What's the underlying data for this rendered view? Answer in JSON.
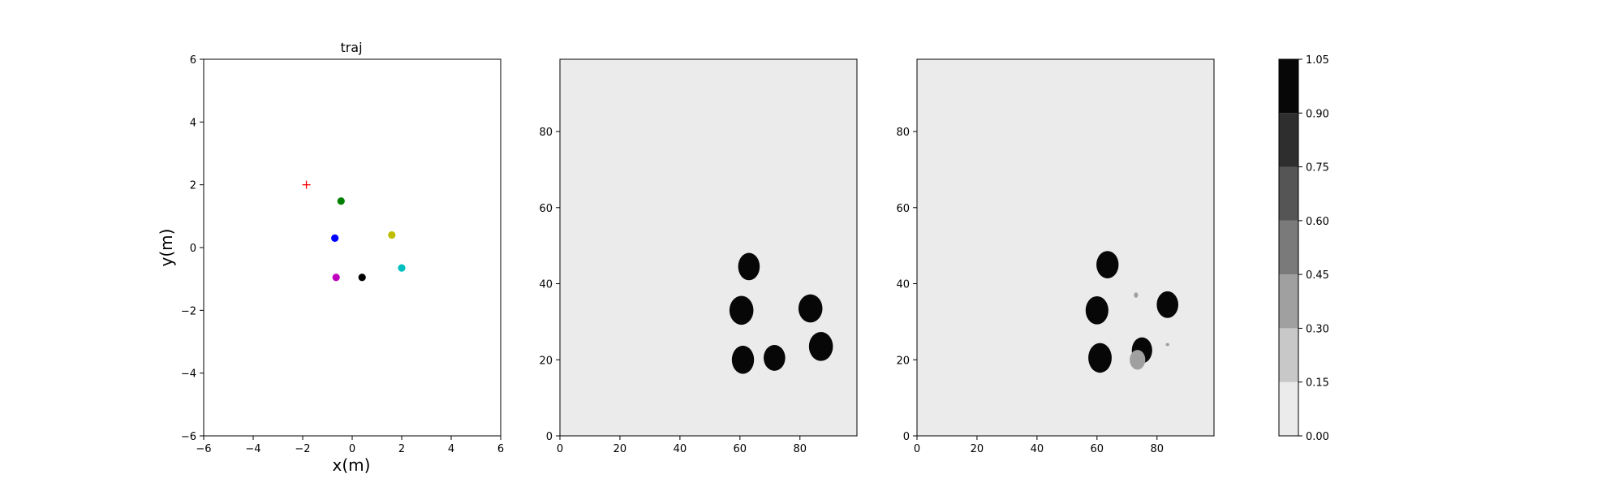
{
  "chart_data": [
    {
      "type": "scatter",
      "title": "traj",
      "xlabel": "x(m)",
      "ylabel": "y(m)",
      "xlim": [
        -6,
        6
      ],
      "ylim": [
        -6,
        6
      ],
      "xticks": [
        -6,
        -4,
        -2,
        0,
        2,
        4,
        6
      ],
      "yticks": [
        -6,
        -4,
        -2,
        0,
        2,
        4,
        6
      ],
      "grid": false,
      "series": [
        {
          "marker": "plus",
          "color": "#ff0000",
          "points": [
            {
              "x": -1.85,
              "y": 2.0
            }
          ]
        },
        {
          "marker": "circle",
          "color": "#008000",
          "points": [
            {
              "x": -0.45,
              "y": 1.48
            }
          ]
        },
        {
          "marker": "circle",
          "color": "#0000ff",
          "points": [
            {
              "x": -0.7,
              "y": 0.3
            }
          ]
        },
        {
          "marker": "circle",
          "color": "#bfbf00",
          "points": [
            {
              "x": 1.6,
              "y": 0.4
            }
          ]
        },
        {
          "marker": "circle",
          "color": "#00bfbf",
          "points": [
            {
              "x": 2.0,
              "y": -0.65
            }
          ]
        },
        {
          "marker": "circle",
          "color": "#bf00bf",
          "points": [
            {
              "x": -0.65,
              "y": -0.95
            }
          ]
        },
        {
          "marker": "circle",
          "color": "#000000",
          "points": [
            {
              "x": 0.4,
              "y": -0.95
            }
          ]
        }
      ]
    },
    {
      "type": "heatmap",
      "title": "",
      "xlim": [
        0,
        99
      ],
      "ylim": [
        0,
        99
      ],
      "xticks": [
        0,
        20,
        40,
        60,
        80
      ],
      "yticks": [
        0,
        20,
        40,
        60,
        80
      ],
      "background_value": 0.0,
      "blobs": [
        {
          "x": 63,
          "y": 44.5,
          "rx": 3.6,
          "ry": 3.6,
          "value": 1.0
        },
        {
          "x": 60.5,
          "y": 33,
          "rx": 4.0,
          "ry": 3.8,
          "value": 1.0
        },
        {
          "x": 83.5,
          "y": 33.5,
          "rx": 4.0,
          "ry": 3.7,
          "value": 1.0
        },
        {
          "x": 87,
          "y": 23.5,
          "rx": 4.0,
          "ry": 3.8,
          "value": 1.0
        },
        {
          "x": 61,
          "y": 20,
          "rx": 3.7,
          "ry": 3.7,
          "value": 1.0
        },
        {
          "x": 71.5,
          "y": 20.5,
          "rx": 3.6,
          "ry": 3.4,
          "value": 1.0
        }
      ]
    },
    {
      "type": "heatmap",
      "title": "",
      "xlim": [
        0,
        99
      ],
      "ylim": [
        0,
        99
      ],
      "xticks": [
        0,
        20,
        40,
        60,
        80
      ],
      "yticks": [
        0,
        20,
        40,
        60,
        80
      ],
      "background_value": 0.0,
      "blobs": [
        {
          "x": 63.5,
          "y": 45,
          "rx": 3.7,
          "ry": 3.6,
          "value": 1.0
        },
        {
          "x": 60,
          "y": 33,
          "rx": 3.8,
          "ry": 3.7,
          "value": 1.0
        },
        {
          "x": 83.5,
          "y": 34.5,
          "rx": 3.6,
          "ry": 3.5,
          "value": 1.0
        },
        {
          "x": 75,
          "y": 22.5,
          "rx": 3.4,
          "ry": 3.4,
          "value": 1.0
        },
        {
          "x": 73.5,
          "y": 20,
          "rx": 2.6,
          "ry": 2.6,
          "value": 0.3
        },
        {
          "x": 61,
          "y": 20.5,
          "rx": 3.9,
          "ry": 3.9,
          "value": 1.0
        },
        {
          "x": 73,
          "y": 37,
          "rx": 0.7,
          "ry": 0.7,
          "value": 0.3
        },
        {
          "x": 83.5,
          "y": 24,
          "rx": 0.6,
          "ry": 0.4,
          "value": 0.3
        }
      ]
    },
    {
      "type": "colorbar",
      "levels": [
        0.0,
        0.15,
        0.3,
        0.45,
        0.6,
        0.75,
        0.9,
        1.05
      ],
      "tick_labels": [
        "0.00",
        "0.15",
        "0.30",
        "0.45",
        "0.60",
        "0.75",
        "0.90",
        "1.05"
      ],
      "colors": [
        "#ebebeb",
        "#c8c8c8",
        "#a0a0a0",
        "#7a7a7a",
        "#555555",
        "#2e2e2e",
        "#070707"
      ]
    }
  ]
}
